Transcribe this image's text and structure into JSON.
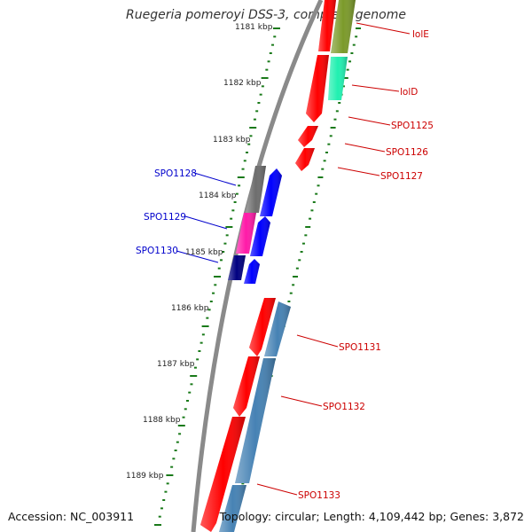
{
  "title": "Ruegeria pomeroyi DSS-3, complete genome",
  "accession": "Accession: NC_003911",
  "summary": "Topology: circular; Length: 4,109,442 bp; Genes: 3,872",
  "colors": {
    "backbone": "#8a8a8a",
    "tick": "#1a7a1a",
    "gene_red": "#ff0000",
    "gene_blue": "#0000ff",
    "gene_gray": "#6d6d6d",
    "gene_magenta": "#ff1aa8",
    "gene_navy": "#000080",
    "gene_olive": "#7b9a2a",
    "gene_aqua": "#20f0b0",
    "gene_steelblue": "#4682b4",
    "label_red": "#cc0000",
    "label_blue": "#0000cc"
  },
  "ticks": [
    "1181 kbp",
    "1182 kbp",
    "1183 kbp",
    "1184 kbp",
    "1185 kbp",
    "1186 kbp",
    "1187 kbp",
    "1188 kbp",
    "1189 kbp"
  ],
  "labels": [
    "lolE",
    "lolD",
    "SPO1125",
    "SPO1126",
    "SPO1127",
    "SPO1128",
    "SPO1129",
    "SPO1130",
    "SPO1131",
    "SPO1132",
    "SPO1133"
  ]
}
